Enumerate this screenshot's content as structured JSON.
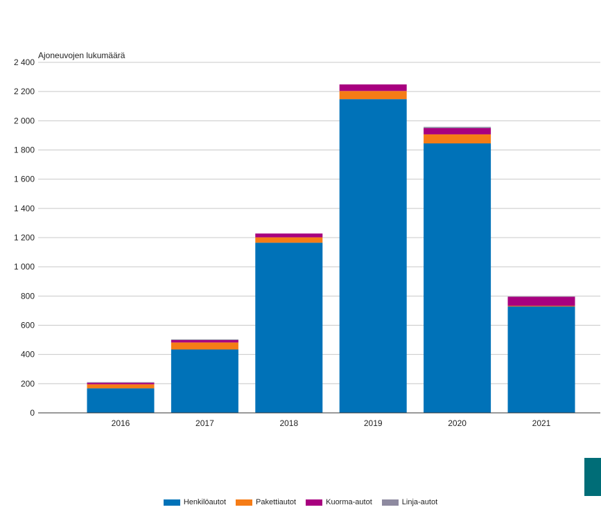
{
  "chart_data": {
    "type": "bar",
    "stacked": true,
    "ylabel": "Ajoneuvojen lukumäärä",
    "ylim": [
      0,
      2400
    ],
    "yticks": [
      0,
      200,
      400,
      600,
      800,
      1000,
      1200,
      1400,
      1600,
      1800,
      2000,
      2200,
      2400
    ],
    "ytick_labels": [
      "0",
      "200",
      "400",
      "600",
      "800",
      "1 000",
      "1 200",
      "1 400",
      "1 600",
      "1 800",
      "2 000",
      "2 200",
      "2 400"
    ],
    "categories": [
      "2016",
      "2017",
      "2018",
      "2019",
      "2020",
      "2021"
    ],
    "grid": true,
    "legend_position": "bottom",
    "series": [
      {
        "name": "Henkilöautot",
        "color": "#0072b8",
        "values": [
          168,
          434,
          1165,
          2148,
          1845,
          728
        ]
      },
      {
        "name": "Pakettiautot",
        "color": "#f57c16",
        "values": [
          28,
          48,
          37,
          56,
          62,
          5
        ]
      },
      {
        "name": "Kuorma-autot",
        "color": "#a8007f",
        "values": [
          10,
          16,
          26,
          45,
          43,
          62
        ]
      },
      {
        "name": "Linja-autot",
        "color": "#8e8aa0",
        "values": [
          4,
          5,
          0,
          0,
          8,
          2
        ]
      }
    ]
  }
}
